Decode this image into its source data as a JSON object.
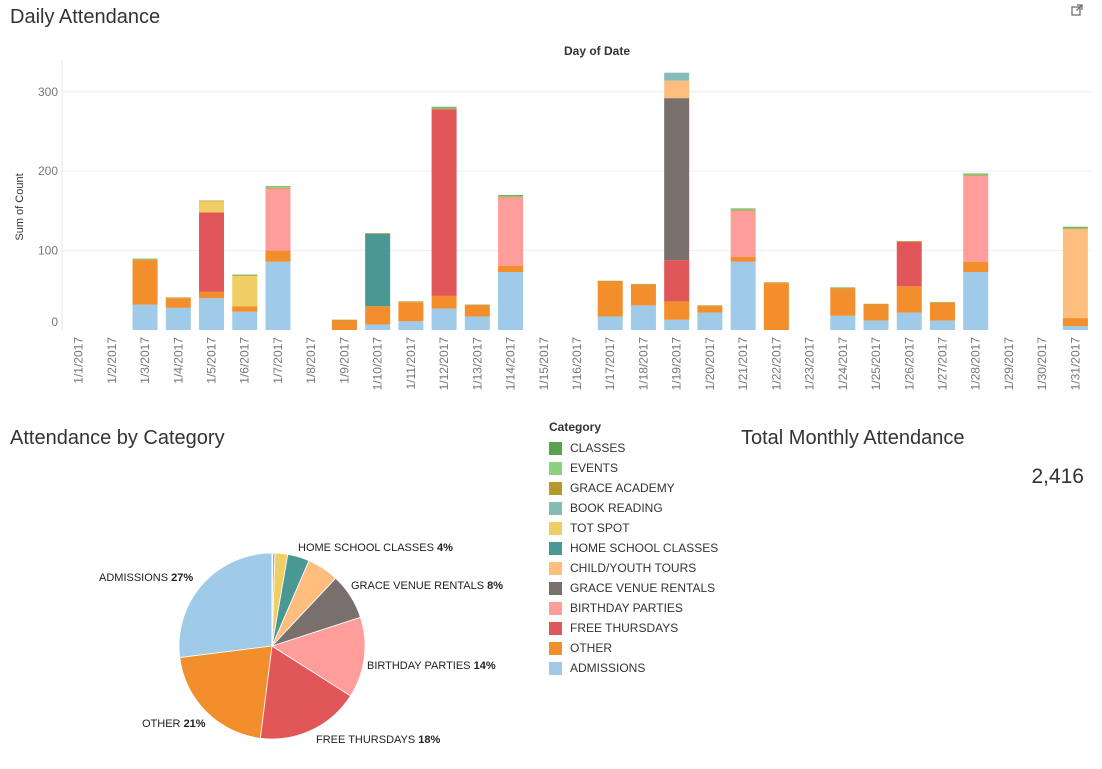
{
  "titles": {
    "daily": "Daily Attendance",
    "by_category": "Attendance by Category",
    "total": "Total Monthly Attendance"
  },
  "total_value": "2,416",
  "legend": {
    "title": "Category",
    "items": [
      {
        "label": "CLASSES",
        "color": "#59a14f"
      },
      {
        "label": "EVENTS",
        "color": "#8cd17d"
      },
      {
        "label": "GRACE ACADEMY",
        "color": "#b6992d"
      },
      {
        "label": "BOOK READING",
        "color": "#86bcb6"
      },
      {
        "label": "TOT SPOT",
        "color": "#f1ce63"
      },
      {
        "label": "HOME SCHOOL CLASSES",
        "color": "#499894"
      },
      {
        "label": "CHILD/YOUTH TOURS",
        "color": "#ffbe7d"
      },
      {
        "label": "GRACE VENUE RENTALS",
        "color": "#79706e"
      },
      {
        "label": "BIRTHDAY PARTIES",
        "color": "#ff9d9a"
      },
      {
        "label": "FREE THURSDAYS",
        "color": "#e15759"
      },
      {
        "label": "OTHER",
        "color": "#f28e2b"
      },
      {
        "label": "ADMISSIONS",
        "color": "#a0cbe8"
      }
    ]
  },
  "chart_data": [
    {
      "type": "bar",
      "stacked": true,
      "xlabel": "Day of Date",
      "ylabel": "Sum of Count",
      "ylim": [
        0,
        340
      ],
      "yticks": [
        0,
        100,
        200,
        300
      ],
      "grid": true,
      "categories": [
        "1/1/2017",
        "1/2/2017",
        "1/3/2017",
        "1/4/2017",
        "1/5/2017",
        "1/6/2017",
        "1/7/2017",
        "1/8/2017",
        "1/9/2017",
        "1/10/2017",
        "1/11/2017",
        "1/12/2017",
        "1/13/2017",
        "1/14/2017",
        "1/15/2017",
        "1/16/2017",
        "1/17/2017",
        "1/18/2017",
        "1/19/2017",
        "1/20/2017",
        "1/21/2017",
        "1/22/2017",
        "1/23/2017",
        "1/24/2017",
        "1/25/2017",
        "1/26/2017",
        "1/27/2017",
        "1/28/2017",
        "1/29/2017",
        "1/30/2017",
        "1/31/2017"
      ],
      "series": [
        {
          "name": "ADMISSIONS",
          "color": "#a0cbe8",
          "values": [
            0,
            0,
            32,
            28,
            40,
            23,
            86,
            0,
            0,
            7,
            11,
            27,
            17,
            73,
            0,
            0,
            17,
            31,
            13,
            22,
            86,
            0,
            0,
            18,
            12,
            22,
            12,
            73,
            0,
            0,
            5
          ]
        },
        {
          "name": "OTHER",
          "color": "#f28e2b",
          "values": [
            0,
            0,
            56,
            12,
            8,
            7,
            14,
            0,
            12,
            23,
            24,
            16,
            14,
            8,
            0,
            0,
            44,
            26,
            23,
            8,
            6,
            59,
            0,
            34,
            20,
            33,
            22,
            13,
            0,
            0,
            10
          ]
        },
        {
          "name": "FREE THURSDAYS",
          "color": "#e15759",
          "values": [
            0,
            0,
            0,
            0,
            100,
            0,
            0,
            0,
            0,
            0,
            0,
            235,
            0,
            0,
            0,
            0,
            0,
            0,
            52,
            0,
            0,
            0,
            0,
            0,
            0,
            56,
            0,
            0,
            0,
            0,
            0
          ]
        },
        {
          "name": "BIRTHDAY PARTIES",
          "color": "#ff9d9a",
          "values": [
            0,
            0,
            0,
            0,
            0,
            0,
            78,
            0,
            0,
            0,
            0,
            0,
            0,
            86,
            0,
            0,
            0,
            0,
            0,
            0,
            58,
            0,
            0,
            0,
            0,
            0,
            0,
            108,
            0,
            0,
            0
          ]
        },
        {
          "name": "GRACE VENUE RENTALS",
          "color": "#79706e",
          "values": [
            0,
            0,
            0,
            0,
            0,
            0,
            0,
            0,
            0,
            0,
            0,
            0,
            0,
            0,
            0,
            0,
            0,
            0,
            204,
            0,
            0,
            0,
            0,
            0,
            0,
            0,
            0,
            0,
            0,
            0,
            0
          ]
        },
        {
          "name": "CHILD/YOUTH TOURS",
          "color": "#ffbe7d",
          "values": [
            0,
            0,
            0,
            0,
            0,
            0,
            0,
            0,
            0,
            0,
            0,
            0,
            0,
            0,
            0,
            0,
            0,
            0,
            22,
            0,
            0,
            0,
            0,
            0,
            0,
            0,
            0,
            0,
            0,
            0,
            112
          ]
        },
        {
          "name": "HOME SCHOOL CLASSES",
          "color": "#499894",
          "values": [
            0,
            0,
            0,
            0,
            0,
            0,
            0,
            0,
            0,
            91,
            0,
            0,
            0,
            0,
            0,
            0,
            0,
            0,
            0,
            0,
            0,
            0,
            0,
            0,
            0,
            0,
            0,
            0,
            0,
            0,
            0
          ]
        },
        {
          "name": "TOT SPOT",
          "color": "#f1ce63",
          "values": [
            0,
            0,
            0,
            0,
            14,
            38,
            0,
            0,
            0,
            0,
            0,
            0,
            0,
            0,
            0,
            0,
            0,
            0,
            0,
            0,
            0,
            0,
            0,
            0,
            0,
            0,
            0,
            0,
            0,
            0,
            0
          ]
        },
        {
          "name": "BOOK READING",
          "color": "#86bcb6",
          "values": [
            0,
            0,
            0,
            0,
            0,
            0,
            0,
            0,
            0,
            0,
            0,
            0,
            0,
            0,
            0,
            0,
            0,
            0,
            10,
            0,
            0,
            0,
            0,
            0,
            0,
            0,
            0,
            0,
            0,
            0,
            0
          ]
        },
        {
          "name": "GRACE ACADEMY",
          "color": "#b6992d",
          "values": [
            0,
            0,
            1,
            1,
            1,
            1,
            1,
            0,
            1,
            1,
            1,
            1,
            1,
            1,
            0,
            0,
            1,
            1,
            0,
            1,
            1,
            1,
            0,
            1,
            1,
            1,
            1,
            1,
            0,
            0,
            1
          ]
        },
        {
          "name": "EVENTS",
          "color": "#8cd17d",
          "values": [
            0,
            0,
            1,
            0,
            0,
            1,
            1,
            0,
            0,
            0,
            0,
            1,
            0,
            1,
            0,
            0,
            0,
            0,
            0,
            0,
            1,
            0,
            0,
            1,
            0,
            0,
            0,
            1,
            0,
            0,
            1
          ]
        },
        {
          "name": "CLASSES",
          "color": "#59a14f",
          "values": [
            0,
            0,
            0,
            0,
            0,
            0,
            1,
            0,
            0,
            0,
            0,
            1,
            0,
            1,
            0,
            0,
            0,
            0,
            0,
            0,
            1,
            0,
            0,
            0,
            0,
            0,
            0,
            1,
            0,
            0,
            1
          ]
        }
      ]
    },
    {
      "type": "pie",
      "slices": [
        {
          "name": "ADMISSIONS",
          "pct": 27,
          "color": "#a0cbe8",
          "label": "ADMISSIONS",
          "pct_label": "27%",
          "value": 27
        },
        {
          "name": "OTHER",
          "pct": 21,
          "color": "#f28e2b",
          "label": "OTHER",
          "pct_label": "21%",
          "value": 21
        },
        {
          "name": "FREE THURSDAYS",
          "pct": 18,
          "color": "#e15759",
          "label": "FREE THURSDAYS",
          "pct_label": "18%",
          "value": 18
        },
        {
          "name": "BIRTHDAY PARTIES",
          "pct": 14,
          "color": "#ff9d9a",
          "label": "BIRTHDAY PARTIES",
          "pct_label": "14%",
          "value": 14
        },
        {
          "name": "GRACE VENUE RENTALS",
          "pct": 8,
          "color": "#79706e",
          "label": "GRACE VENUE RENTALS",
          "pct_label": "8%",
          "value": 8
        },
        {
          "name": "CHILD/YOUTH TOURS",
          "pct": 5,
          "color": "#ffbe7d",
          "label": "",
          "pct_label": "",
          "value": 5.5
        },
        {
          "name": "HOME SCHOOL CLASSES",
          "pct": 4,
          "color": "#499894",
          "label": "HOME SCHOOL CLASSES",
          "pct_label": "4%",
          "value": 3.8
        },
        {
          "name": "TOT SPOT",
          "pct": 2,
          "color": "#f1ce63",
          "label": "",
          "pct_label": "",
          "value": 2.2
        },
        {
          "name": "BOOK READING",
          "pct": 0.4,
          "color": "#86bcb6",
          "label": "",
          "pct_label": "",
          "value": 0.4
        },
        {
          "name": "GRACE ACADEMY",
          "pct": 0.1,
          "color": "#b6992d",
          "label": "",
          "pct_label": "",
          "value": 0.1
        }
      ]
    }
  ]
}
